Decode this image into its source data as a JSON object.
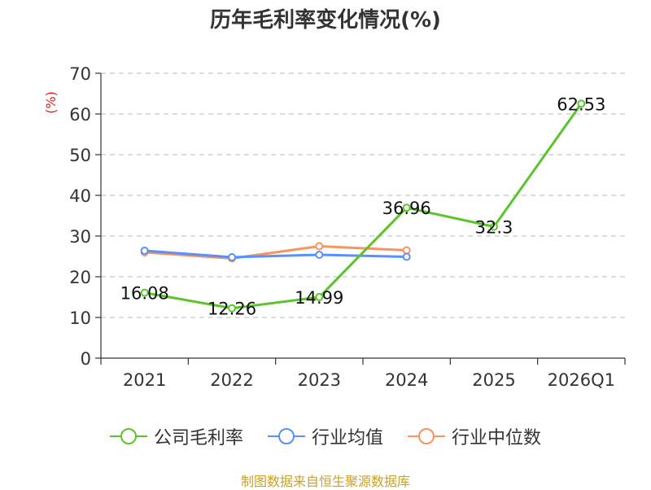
{
  "chart_data": {
    "type": "line",
    "title": "历年毛利率变化情况(%)",
    "ylabel": "(%)",
    "xlabel": "",
    "categories": [
      "2021",
      "2022",
      "2023",
      "2024",
      "2025",
      "2026Q1"
    ],
    "ylim": [
      0,
      70
    ],
    "yticks": [
      0,
      10,
      20,
      30,
      40,
      50,
      60,
      70
    ],
    "grid": "horizontal-dashed",
    "legend_position": "bottom",
    "series": [
      {
        "name": "公司毛利率",
        "color": "#5cc42b",
        "values": [
          16.08,
          12.26,
          14.99,
          36.96,
          32.3,
          62.53
        ],
        "labels": [
          "16.08",
          "12.26",
          "14.99",
          "36.96",
          "32.3",
          "62.53"
        ]
      },
      {
        "name": "行业均值",
        "color": "#5b8ff9",
        "values": [
          26.4,
          24.8,
          25.4,
          24.9,
          null,
          null
        ]
      },
      {
        "name": "行业中位数",
        "color": "#f7945f",
        "values": [
          26.0,
          24.5,
          27.5,
          26.5,
          null,
          null
        ]
      }
    ]
  },
  "source": "制图数据来自恒生聚源数据库"
}
